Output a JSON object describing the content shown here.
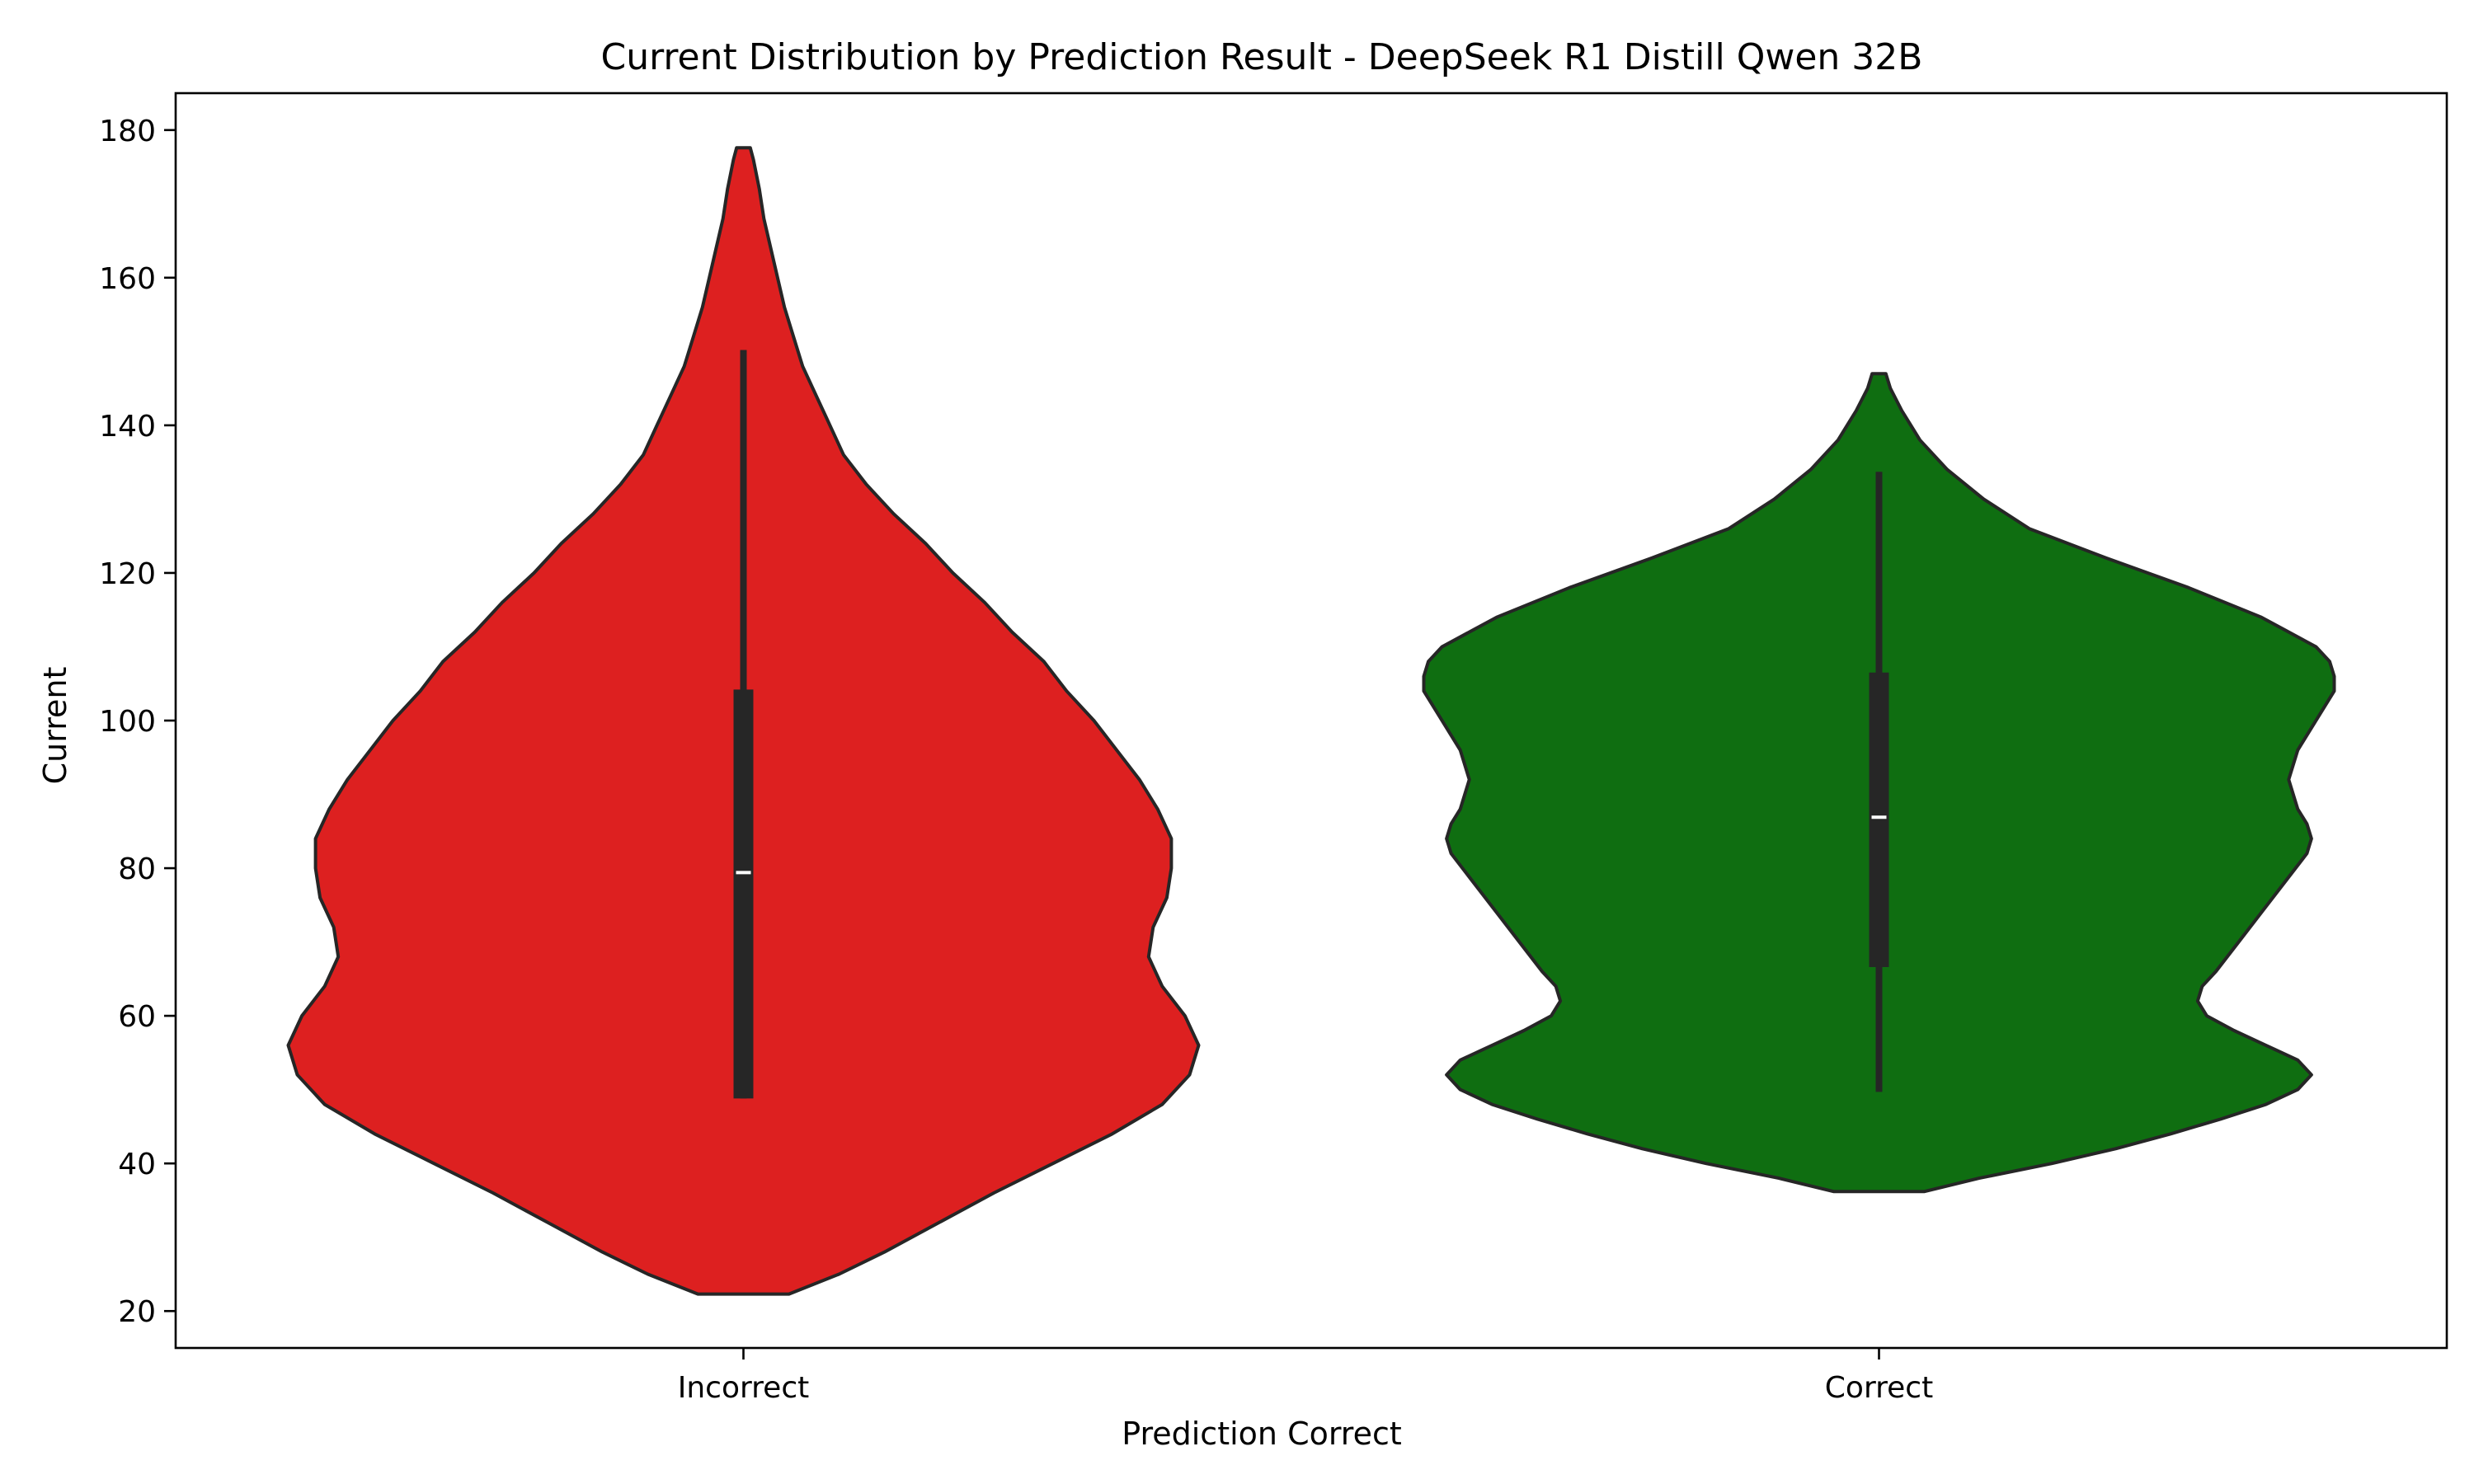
{
  "chart_data": {
    "type": "violin",
    "title": "Current Distribution by Prediction Result - DeepSeek R1 Distill Qwen 32B",
    "xlabel": "Prediction Correct",
    "ylabel": "Current",
    "ylim": [
      15,
      185
    ],
    "yticks": [
      20,
      40,
      60,
      80,
      100,
      120,
      140,
      160,
      180
    ],
    "grid": false,
    "categories": [
      "Incorrect",
      "Correct"
    ],
    "colors": [
      "#dd2020",
      "#0f6e11"
    ],
    "violins": [
      {
        "category": "Incorrect",
        "color": "#dd2020",
        "min": 22.3,
        "max": 177.6,
        "q1": 48.8,
        "median": 79.4,
        "q3": 104.2,
        "whisker_low": 48.8,
        "whisker_high": 150.2,
        "density": [
          [
            22.3,
            0.1
          ],
          [
            25,
            0.21
          ],
          [
            28,
            0.31
          ],
          [
            32,
            0.43
          ],
          [
            36,
            0.55
          ],
          [
            40,
            0.68
          ],
          [
            44,
            0.81
          ],
          [
            48,
            0.92
          ],
          [
            52,
            0.98
          ],
          [
            56,
            1.0
          ],
          [
            60,
            0.97
          ],
          [
            64,
            0.92
          ],
          [
            68,
            0.89
          ],
          [
            72,
            0.9
          ],
          [
            76,
            0.93
          ],
          [
            80,
            0.94
          ],
          [
            84,
            0.94
          ],
          [
            88,
            0.91
          ],
          [
            92,
            0.87
          ],
          [
            96,
            0.82
          ],
          [
            100,
            0.77
          ],
          [
            104,
            0.71
          ],
          [
            108,
            0.66
          ],
          [
            112,
            0.59
          ],
          [
            116,
            0.53
          ],
          [
            120,
            0.46
          ],
          [
            124,
            0.4
          ],
          [
            128,
            0.33
          ],
          [
            132,
            0.27
          ],
          [
            136,
            0.22
          ],
          [
            140,
            0.19
          ],
          [
            144,
            0.16
          ],
          [
            148,
            0.13
          ],
          [
            152,
            0.11
          ],
          [
            156,
            0.09
          ],
          [
            160,
            0.075
          ],
          [
            164,
            0.06
          ],
          [
            168,
            0.045
          ],
          [
            172,
            0.035
          ],
          [
            176,
            0.022
          ],
          [
            177.6,
            0.015
          ]
        ]
      },
      {
        "category": "Correct",
        "color": "#0f6e11",
        "min": 36.2,
        "max": 147.0,
        "q1": 66.6,
        "median": 86.9,
        "q3": 106.5,
        "whisker_low": 49.7,
        "whisker_high": 133.7,
        "density": [
          [
            36.2,
            0.1
          ],
          [
            38,
            0.22
          ],
          [
            40,
            0.38
          ],
          [
            42,
            0.52
          ],
          [
            44,
            0.64
          ],
          [
            46,
            0.75
          ],
          [
            48,
            0.85
          ],
          [
            50,
            0.92
          ],
          [
            52,
            0.95
          ],
          [
            54,
            0.92
          ],
          [
            56,
            0.85
          ],
          [
            58,
            0.78
          ],
          [
            60,
            0.72
          ],
          [
            62,
            0.7
          ],
          [
            64,
            0.71
          ],
          [
            66,
            0.74
          ],
          [
            70,
            0.79
          ],
          [
            74,
            0.84
          ],
          [
            78,
            0.89
          ],
          [
            82,
            0.94
          ],
          [
            84,
            0.95
          ],
          [
            86,
            0.94
          ],
          [
            88,
            0.92
          ],
          [
            92,
            0.9
          ],
          [
            96,
            0.92
          ],
          [
            100,
            0.96
          ],
          [
            104,
            1.0
          ],
          [
            106,
            1.0
          ],
          [
            108,
            0.99
          ],
          [
            110,
            0.96
          ],
          [
            114,
            0.84
          ],
          [
            118,
            0.68
          ],
          [
            122,
            0.5
          ],
          [
            126,
            0.33
          ],
          [
            130,
            0.23
          ],
          [
            134,
            0.15
          ],
          [
            138,
            0.09
          ],
          [
            142,
            0.05
          ],
          [
            145,
            0.025
          ],
          [
            147.0,
            0.015
          ]
        ]
      }
    ]
  }
}
